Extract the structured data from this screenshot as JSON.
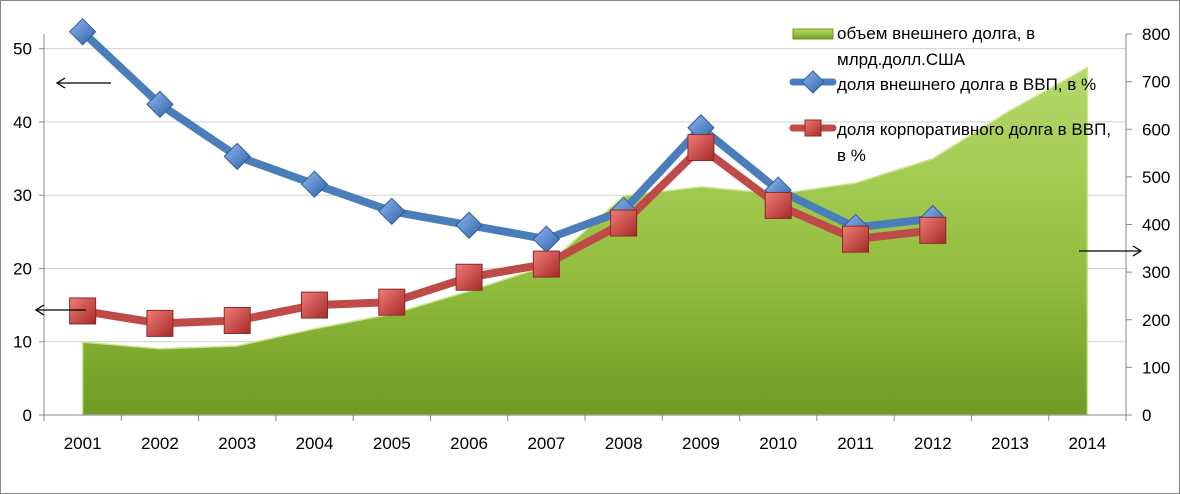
{
  "chart_data": {
    "type": "line+area",
    "categories": [
      "2001",
      "2002",
      "2003",
      "2004",
      "2005",
      "2006",
      "2007",
      "2008",
      "2009",
      "2010",
      "2011",
      "2012",
      "2013",
      "2014"
    ],
    "left_axis": {
      "ylim": [
        0,
        52
      ],
      "ticks": [
        0,
        10,
        20,
        30,
        40,
        50
      ]
    },
    "right_axis": {
      "ylim": [
        0,
        800
      ],
      "ticks": [
        0,
        100,
        200,
        300,
        400,
        500,
        600,
        700,
        800
      ]
    },
    "grid": true,
    "legend_position": "top-right",
    "series": [
      {
        "name": "объем внешнего долга, в млрд.долл.США",
        "type": "area",
        "axis": "right",
        "color": "#8db83a",
        "values": [
          153,
          139,
          145,
          181,
          212,
          260,
          313,
          460,
          479,
          464,
          487,
          538,
          639,
          729
        ]
      },
      {
        "name": "доля внешнего долга в ВВП, в %",
        "type": "line",
        "axis": "left",
        "color": "#4a7ebb",
        "marker": "diamond",
        "values": [
          52.3,
          42.4,
          35.3,
          31.5,
          27.8,
          25.9,
          24.0,
          27.9,
          39.2,
          30.7,
          25.6,
          26.8,
          null,
          null
        ]
      },
      {
        "name": "доля корпоративного долга в ВВП, в %",
        "type": "line",
        "axis": "left",
        "color": "#be4b48",
        "marker": "square",
        "values": [
          14.2,
          12.5,
          12.9,
          15.0,
          15.4,
          18.8,
          20.6,
          26.2,
          36.5,
          28.6,
          24.0,
          25.2,
          null,
          null
        ]
      }
    ],
    "legend_lines": [
      [
        "объем внешнего долга, в",
        "млрд.долл.США"
      ],
      [
        "доля внешнего долга в ВВП, в %"
      ],
      [
        "доля корпоративного долга в ВВП,",
        "в %"
      ]
    ]
  }
}
